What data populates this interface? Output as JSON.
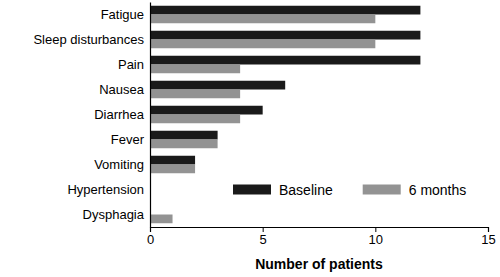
{
  "chart_data": {
    "type": "bar",
    "orientation": "horizontal",
    "categories": [
      "Fatigue",
      "Sleep disturbances",
      "Pain",
      "Nausea",
      "Diarrhea",
      "Fever",
      "Vomiting",
      "Hypertension",
      "Dysphagia"
    ],
    "series": [
      {
        "name": "Baseline",
        "color": "#1a1a1a",
        "values": [
          12,
          12,
          12,
          6,
          5,
          3,
          2,
          0,
          0
        ]
      },
      {
        "name": "6 months",
        "color": "#939393",
        "values": [
          10,
          10,
          4,
          4,
          4,
          3,
          2,
          0,
          1
        ]
      }
    ],
    "x_label": "Number of patients",
    "xlim": [
      0,
      15
    ],
    "xticks": [
      0,
      5,
      10,
      15
    ],
    "legend": "lower right",
    "grid": false
  }
}
